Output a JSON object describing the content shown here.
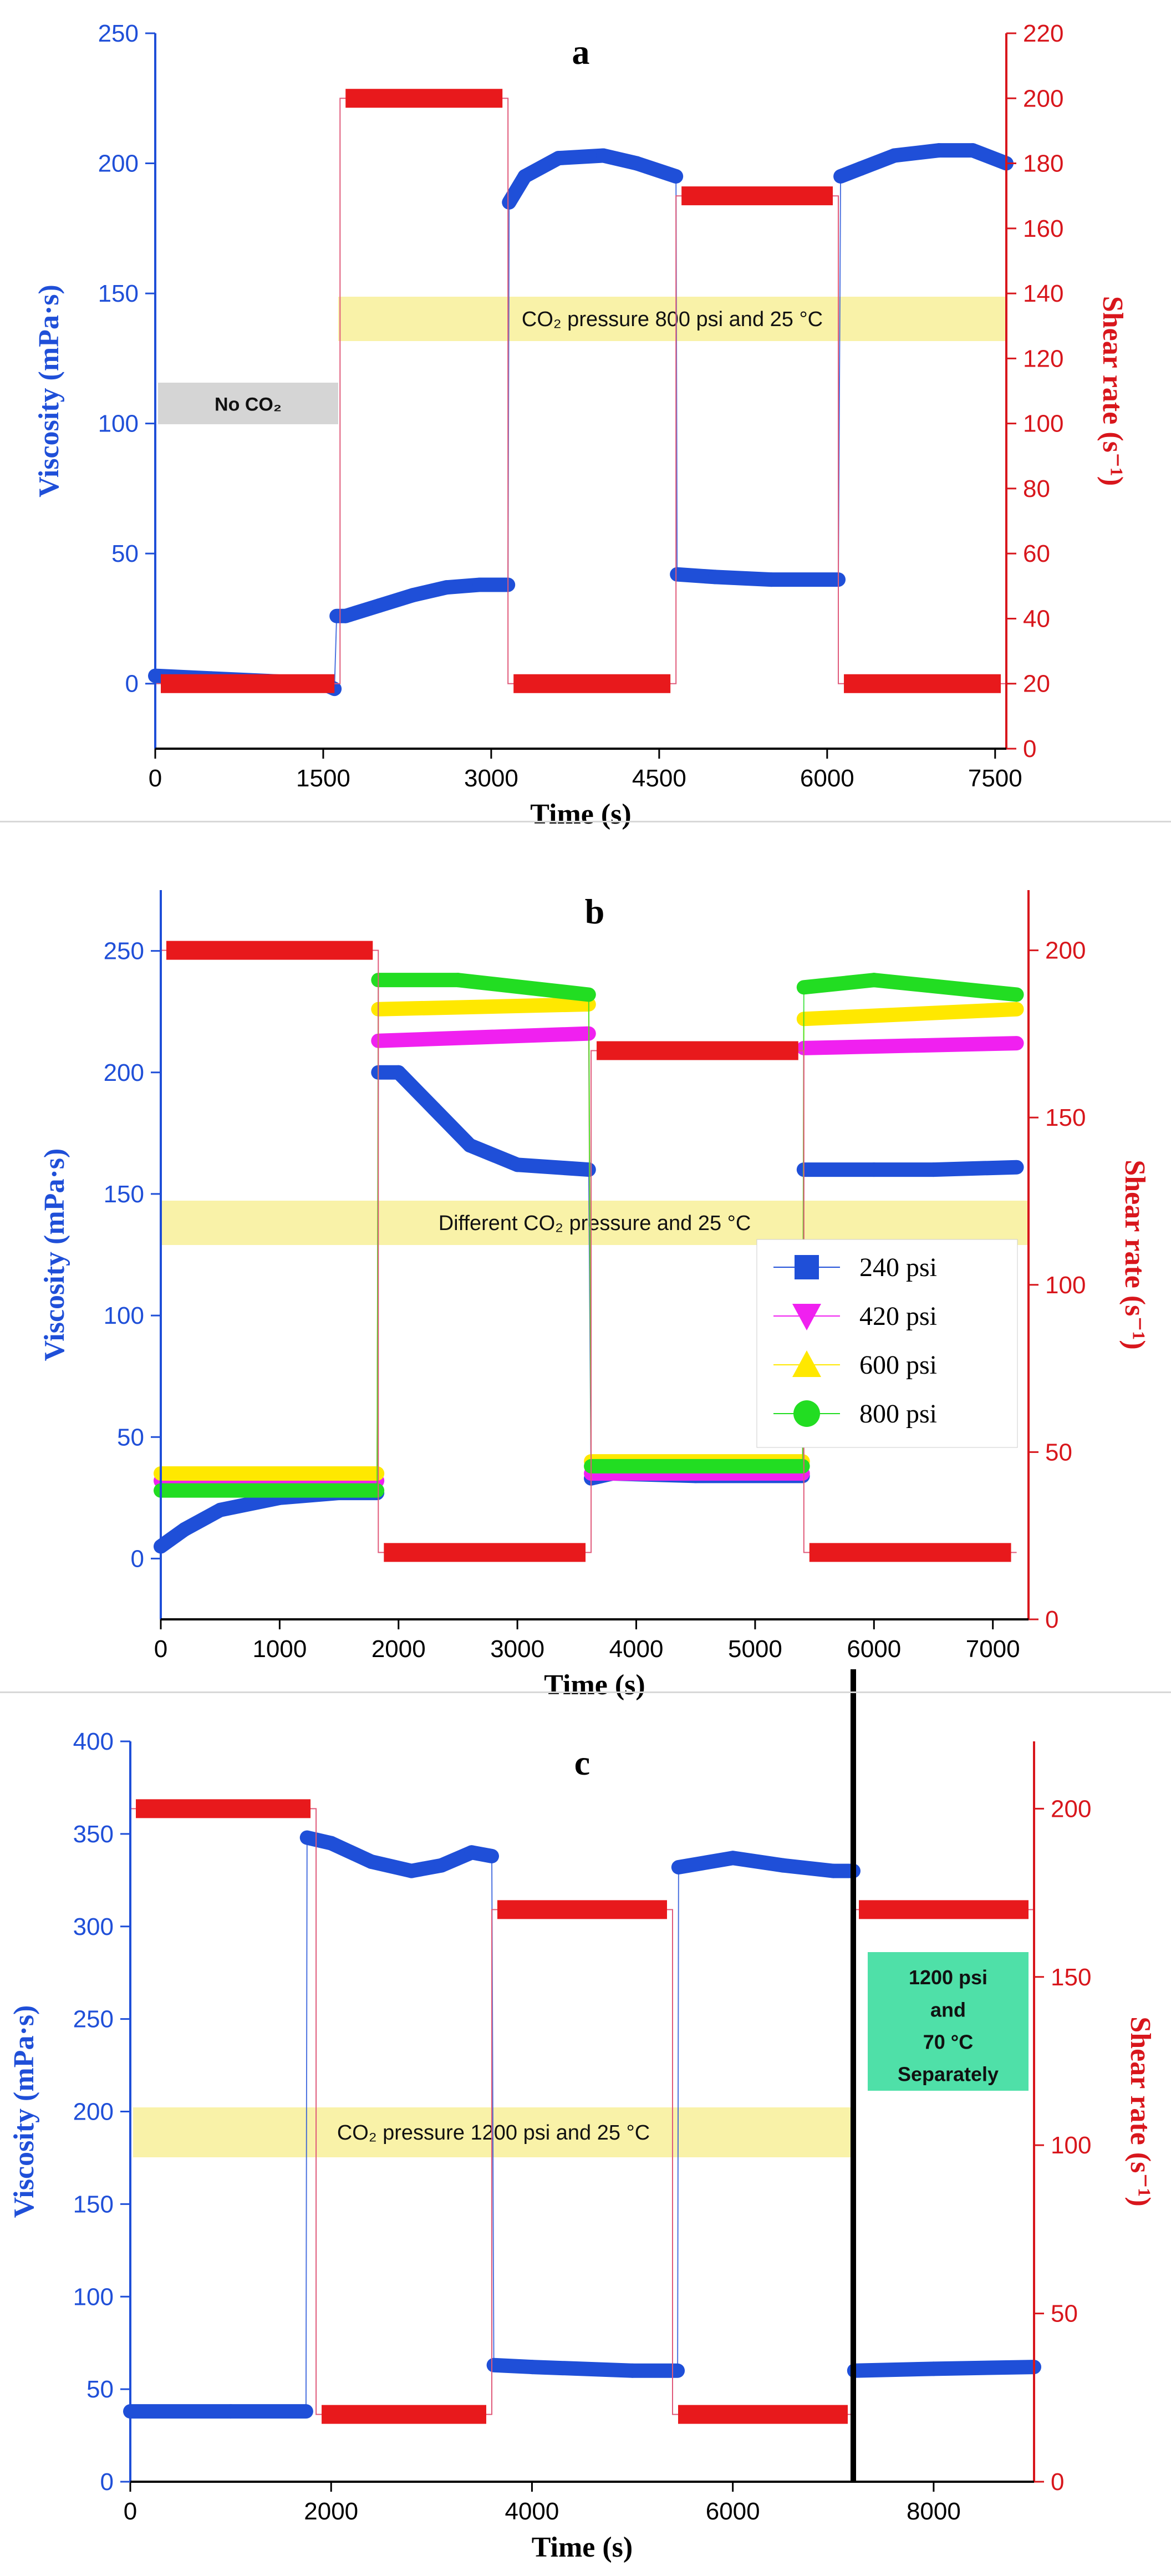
{
  "chart_data": [
    {
      "type": "line",
      "panel_label": "a",
      "xlabel": "Time (s)",
      "ylabel_left": "Viscosity (mPa·s)",
      "ylabel_right": "Shear rate (s⁻¹)",
      "xlim": [
        0,
        7600
      ],
      "ylim_left": [
        -25,
        250
      ],
      "ylim_right": [
        0,
        220
      ],
      "x_ticks": [
        0,
        1500,
        3000,
        4500,
        6000,
        7500
      ],
      "y_left_ticks": [
        0,
        50,
        100,
        150,
        200,
        250
      ],
      "y_right_ticks": [
        0,
        20,
        40,
        60,
        80,
        100,
        120,
        140,
        160,
        180,
        200,
        220
      ],
      "annotations": [
        {
          "text": "No CO₂",
          "style": "gray"
        },
        {
          "text": "CO₂ pressure 800 psi and 25 °C",
          "style": "yellow"
        }
      ],
      "series": [
        {
          "name": "Viscosity",
          "axis": "left",
          "color": "#1f4fd8",
          "x": [
            0,
            500,
            1000,
            1500,
            1600,
            1620,
            1700,
            2000,
            2300,
            2600,
            2900,
            3150,
            3160,
            3300,
            3600,
            4000,
            4300,
            4650,
            4660,
            5000,
            5500,
            6100,
            6120,
            6300,
            6600,
            7000,
            7300,
            7600
          ],
          "values": [
            3,
            2,
            1,
            0,
            -2,
            26,
            26,
            30,
            34,
            37,
            38,
            38,
            185,
            195,
            202,
            203,
            200,
            195,
            42,
            41,
            40,
            40,
            195,
            198,
            203,
            205,
            205,
            200
          ]
        },
        {
          "name": "Shear rate",
          "axis": "right",
          "color": "#e8191c",
          "x": [
            0,
            1650,
            1650,
            3150,
            3150,
            4650,
            4650,
            6100,
            6100,
            7600
          ],
          "values": [
            20,
            20,
            200,
            200,
            20,
            20,
            170,
            170,
            20,
            20
          ]
        }
      ]
    },
    {
      "type": "line",
      "panel_label": "b",
      "xlabel": "Time (s)",
      "ylabel_left": "Viscosity (mPa·s)",
      "ylabel_right": "Shear rate (s⁻¹)",
      "xlim": [
        0,
        7300
      ],
      "ylim_left": [
        -25,
        275
      ],
      "ylim_right": [
        0,
        218
      ],
      "x_ticks": [
        0,
        1000,
        2000,
        3000,
        4000,
        5000,
        6000,
        7000
      ],
      "y_left_ticks": [
        0,
        50,
        100,
        150,
        200,
        250
      ],
      "y_right_ticks": [
        0,
        50,
        100,
        150,
        200
      ],
      "annotations": [
        {
          "text": "Different CO₂ pressure and 25 °C",
          "style": "yellow"
        }
      ],
      "legend": [
        {
          "name": "240 psi",
          "marker": "square",
          "color": "#1f4fd8"
        },
        {
          "name": "420 psi",
          "marker": "triangle-down",
          "color": "#f020f0"
        },
        {
          "name": "600 psi",
          "marker": "triangle-up",
          "color": "#ffe800"
        },
        {
          "name": "800 psi",
          "marker": "circle",
          "color": "#22dd22"
        }
      ],
      "series": [
        {
          "name": "240 psi",
          "axis": "left",
          "color": "#1f4fd8",
          "x": [
            0,
            200,
            500,
            1000,
            1500,
            1820,
            1830,
            2000,
            2300,
            2600,
            3000,
            3600,
            3620,
            3800,
            4500,
            5400,
            5410,
            6000,
            6500,
            7200
          ],
          "values": [
            5,
            12,
            20,
            25,
            27,
            27,
            200,
            200,
            185,
            170,
            162,
            160,
            33,
            35,
            34,
            34,
            160,
            160,
            160,
            161
          ]
        },
        {
          "name": "420 psi",
          "axis": "left",
          "color": "#f020f0",
          "x": [
            0,
            1820,
            1830,
            3600,
            3620,
            5400,
            5410,
            7200
          ],
          "values": [
            32,
            32,
            213,
            216,
            35,
            35,
            210,
            212
          ]
        },
        {
          "name": "600 psi",
          "axis": "left",
          "color": "#ffe800",
          "x": [
            0,
            1820,
            1830,
            3600,
            3620,
            5400,
            5410,
            7200
          ],
          "values": [
            35,
            35,
            226,
            228,
            40,
            40,
            222,
            226
          ]
        },
        {
          "name": "800 psi",
          "axis": "left",
          "color": "#22dd22",
          "x": [
            0,
            1820,
            1830,
            2500,
            3600,
            3620,
            5400,
            5410,
            6000,
            7200
          ],
          "values": [
            28,
            28,
            238,
            238,
            232,
            38,
            38,
            235,
            238,
            232
          ]
        },
        {
          "name": "Shear rate",
          "axis": "right",
          "color": "#e8191c",
          "x": [
            0,
            1830,
            1830,
            3620,
            3620,
            5410,
            5410,
            7200
          ],
          "values": [
            200,
            200,
            20,
            20,
            170,
            170,
            20,
            20
          ]
        }
      ]
    },
    {
      "type": "line",
      "panel_label": "c",
      "xlabel": "Time (s)",
      "ylabel_left": "Viscosity (mPa·s)",
      "ylabel_right": "Shear rate (s⁻¹)",
      "xlim": [
        0,
        9000
      ],
      "ylim_left": [
        0,
        400
      ],
      "ylim_right": [
        0,
        220
      ],
      "x_ticks": [
        0,
        2000,
        4000,
        6000,
        8000
      ],
      "y_left_ticks": [
        0,
        50,
        100,
        150,
        200,
        250,
        300,
        350,
        400
      ],
      "y_right_ticks": [
        0,
        50,
        100,
        150,
        200
      ],
      "annotations": [
        {
          "text": "CO₂ pressure 1200 psi and 25 °C",
          "style": "yellow"
        },
        {
          "text_lines": [
            "1200 psi",
            "and",
            "70 °C",
            "Separately"
          ],
          "style": "green"
        }
      ],
      "vertical_marker_x": 7200,
      "series": [
        {
          "name": "Viscosity",
          "axis": "left",
          "color": "#1f4fd8",
          "x": [
            0,
            1000,
            1750,
            1760,
            2000,
            2400,
            2800,
            3100,
            3400,
            3600,
            3620,
            4000,
            5000,
            5450,
            5460,
            6000,
            6500,
            7000,
            7200,
            7210,
            8000,
            9000
          ],
          "values": [
            38,
            38,
            38,
            348,
            345,
            335,
            330,
            333,
            340,
            338,
            63,
            62,
            60,
            60,
            332,
            337,
            333,
            330,
            330,
            60,
            61,
            62
          ]
        },
        {
          "name": "Shear rate",
          "axis": "right",
          "color": "#e8191c",
          "x": [
            0,
            1850,
            1850,
            3600,
            3600,
            5400,
            5400,
            7200,
            7200,
            9000
          ],
          "values": [
            200,
            200,
            20,
            20,
            170,
            170,
            20,
            20,
            170,
            170
          ]
        }
      ]
    }
  ]
}
